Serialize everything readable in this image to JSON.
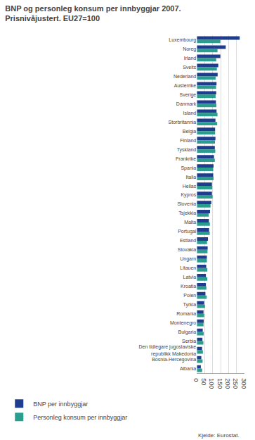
{
  "chart_data": {
    "type": "bar",
    "orientation": "horizontal",
    "title": "BNP og personleg konsum per innbyggjar 2007.",
    "subtitle": "Prisnivåjustert. EU27=100",
    "categories": [
      "Luxembourg",
      "Noreg",
      "Irland",
      "Sveits",
      "Nederland",
      "Austerrike",
      "Sverige",
      "Danmark",
      "Island",
      "Storbritannia",
      "Belgia",
      "Finland",
      "Tyskland",
      "Frankrike",
      "Spania",
      "Italia",
      "Hellas",
      "Kypros",
      "Slovenia",
      "Tsjekkia",
      "Malta",
      "Portugal",
      "Estland",
      "Slovakia",
      "Ungarn",
      "Litauen",
      "Latvia",
      "Kroatia",
      "Polen",
      "Tyrkia",
      "Romania",
      "Montenegro",
      "Bulgaria",
      "Serbia",
      "Den tidlegare jugoslaviske\nrepublikk Makedonia",
      "Bosnia-Hercegovina",
      "Albania"
    ],
    "series": [
      {
        "name": "BNP per innbyggjar",
        "color": "#1f3d8c",
        "values": [
          270,
          182,
          148,
          135,
          131,
          124,
          122,
          120,
          124,
          117,
          115,
          117,
          113,
          108,
          105,
          103,
          95,
          95,
          91,
          83,
          76,
          77,
          70,
          68,
          63,
          59,
          57,
          57,
          54,
          46,
          42,
          43,
          37,
          35,
          33,
          28,
          25
        ]
      },
      {
        "name": "Personleg konsum per innbyggjar",
        "color": "#2a9d8f",
        "values": [
          148,
          130,
          122,
          126,
          118,
          121,
          118,
          123,
          130,
          128,
          115,
          114,
          116,
          113,
          103,
          105,
          97,
          99,
          86,
          75,
          82,
          81,
          64,
          67,
          63,
          66,
          66,
          60,
          62,
          51,
          46,
          42,
          43,
          41,
          38,
          36,
          33
        ]
      }
    ],
    "xlim": [
      0,
      300
    ],
    "xticks": [
      0,
      50,
      100,
      150,
      200,
      250,
      300
    ],
    "grid": true,
    "legend": "bottom",
    "annotations": [
      "Kjelde: Eurostat."
    ]
  }
}
